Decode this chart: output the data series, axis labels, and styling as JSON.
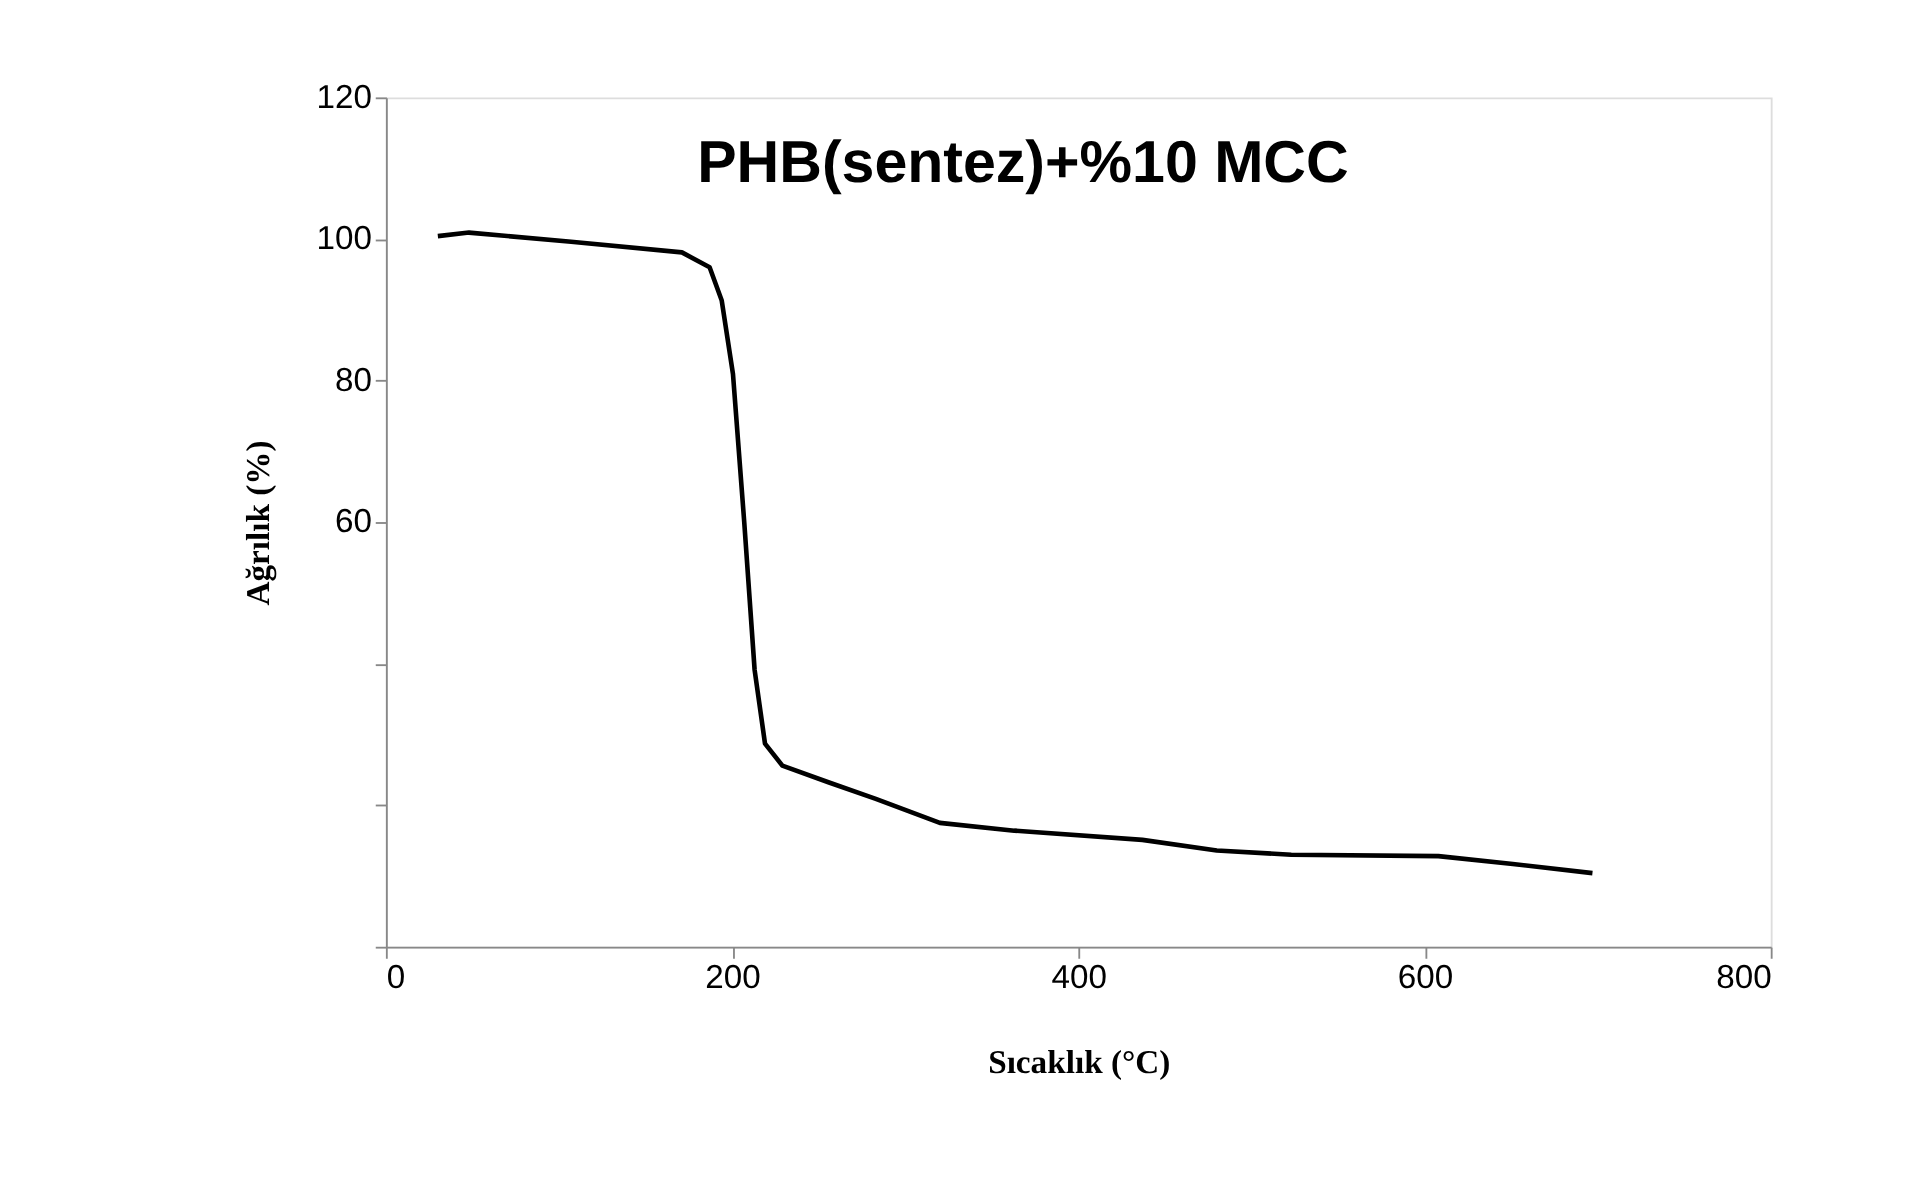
{
  "chart_data": {
    "type": "line",
    "title": "PHB(sentez)+%10 MCC",
    "xlabel": "Sıcaklık (°C)",
    "ylabel": "Ağrılık (%)",
    "x": [
      30,
      48,
      107,
      171,
      187,
      194,
      200.5,
      207,
      213,
      219,
      229,
      256,
      283,
      320,
      363,
      437,
      480,
      523,
      608,
      651,
      697
    ],
    "series": [
      {
        "color": "#000000",
        "values": [
          100.4,
          100.9,
          99.6,
          98.1,
          96.0,
          91.3,
          80.9,
          60.0,
          39.1,
          28.7,
          25.6,
          23.2,
          20.9,
          17.5,
          16.4,
          15.1,
          13.6,
          13.0,
          12.8,
          11.7,
          10.4
        ]
      }
    ],
    "xlim": [
      0,
      800
    ],
    "xticks": [
      0,
      200,
      400,
      600,
      800
    ],
    "ylim": [
      0,
      120
    ],
    "yticks": [
      120,
      100,
      80,
      60,
      {
        "value": 40,
        "label": null
      },
      {
        "value": 20,
        "label": null
      },
      {
        "value": 0,
        "label": null
      }
    ],
    "grid": false,
    "legend": false,
    "marker": "none",
    "line_style": "solid"
  }
}
